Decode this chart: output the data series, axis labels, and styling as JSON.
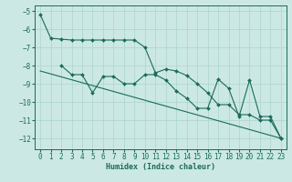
{
  "xlabel": "Humidex (Indice chaleur)",
  "bg_color": "#cce8e4",
  "grid_color": "#aad4cc",
  "line_color": "#1a6b5a",
  "xlim": [
    -0.5,
    23.5
  ],
  "ylim": [
    -12.6,
    -4.7
  ],
  "yticks": [
    -5,
    -6,
    -7,
    -8,
    -9,
    -10,
    -11,
    -12
  ],
  "xticks": [
    0,
    1,
    2,
    3,
    4,
    5,
    6,
    7,
    8,
    9,
    10,
    11,
    12,
    13,
    14,
    15,
    16,
    17,
    18,
    19,
    20,
    21,
    22,
    23
  ],
  "line1_x": [
    0,
    1,
    2,
    3,
    4,
    5,
    6,
    7,
    8,
    9,
    10,
    11,
    12,
    13,
    14,
    15,
    16,
    17,
    18,
    19,
    20,
    21,
    22,
    23
  ],
  "line1_y": [
    -5.2,
    -6.5,
    -6.55,
    -6.6,
    -6.6,
    -6.6,
    -6.6,
    -6.6,
    -6.6,
    -6.6,
    -7.0,
    -8.4,
    -8.2,
    -8.3,
    -8.55,
    -9.0,
    -9.5,
    -10.15,
    -10.15,
    -10.7,
    -10.7,
    -11.0,
    -11.0,
    -12.0
  ],
  "line2_x": [
    2,
    3,
    4,
    5,
    6,
    7,
    8,
    9,
    10,
    11,
    12,
    13,
    14,
    15,
    16,
    17,
    18,
    19,
    20,
    21,
    22,
    23
  ],
  "line2_y": [
    -8.0,
    -8.5,
    -8.5,
    -9.5,
    -8.6,
    -8.6,
    -9.0,
    -9.0,
    -8.5,
    -8.5,
    -8.8,
    -9.4,
    -9.8,
    -10.35,
    -10.35,
    -8.75,
    -9.25,
    -10.8,
    -8.8,
    -10.8,
    -10.8,
    -12.0
  ],
  "line3_x": [
    0,
    23
  ],
  "line3_y": [
    -8.3,
    -12.0
  ],
  "tick_fontsize": 5.5,
  "xlabel_fontsize": 6.0,
  "marker_size": 2.0,
  "line_width": 0.8
}
